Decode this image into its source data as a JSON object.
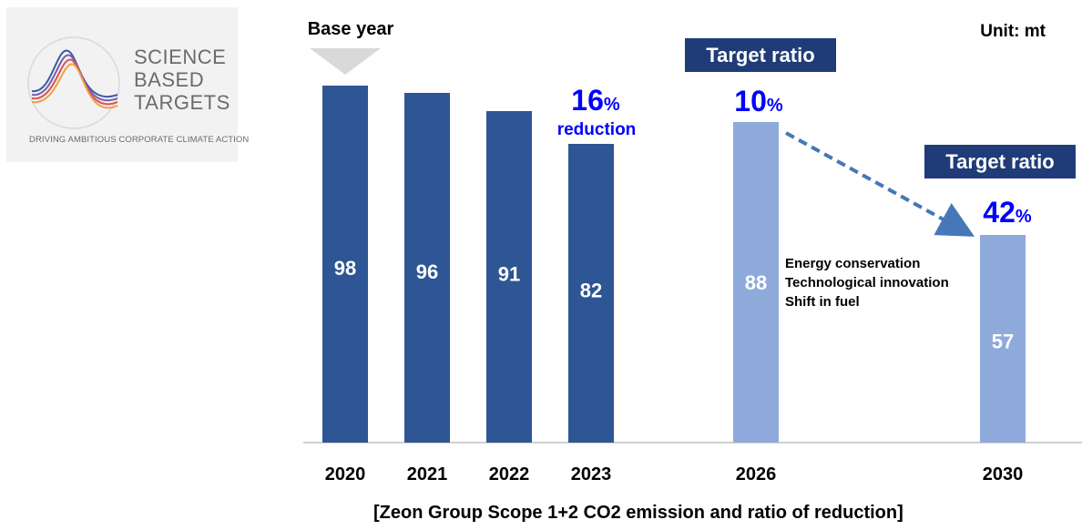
{
  "logo": {
    "line1": "SCIENCE",
    "line2": "BASED",
    "line3": "TARGETS",
    "tagline": "DRIVING AMBITIOUS CORPORATE CLIMATE ACTION"
  },
  "unit_label": "Unit: mt",
  "caption": "[Zeon Group Scope 1+2 CO2 emission and ratio of reduction]",
  "colors": {
    "actual": "#2e5594",
    "target": "#8eaadb",
    "accent": "#0000ff",
    "badge": "#1f3c78",
    "arrow": "#4677b8"
  },
  "chart_data": {
    "type": "bar",
    "categories": [
      "2020",
      "2021",
      "2022",
      "2023",
      "2026",
      "2030"
    ],
    "values": [
      98,
      96,
      91,
      82,
      88,
      57
    ],
    "kinds": [
      "actual",
      "actual",
      "actual",
      "actual",
      "target",
      "target"
    ],
    "ylim": [
      0,
      110
    ],
    "annotations": {
      "base_year": "Base year",
      "reduction_2023": {
        "value": "16",
        "pct": "%",
        "label": "reduction"
      },
      "target_2026": {
        "badge": "Target ratio",
        "value": "10",
        "pct": "%"
      },
      "target_2030": {
        "badge": "Target ratio",
        "value": "42",
        "pct": "%"
      },
      "measures": [
        "Energy conservation",
        "Technological innovation",
        "Shift in fuel"
      ]
    }
  }
}
